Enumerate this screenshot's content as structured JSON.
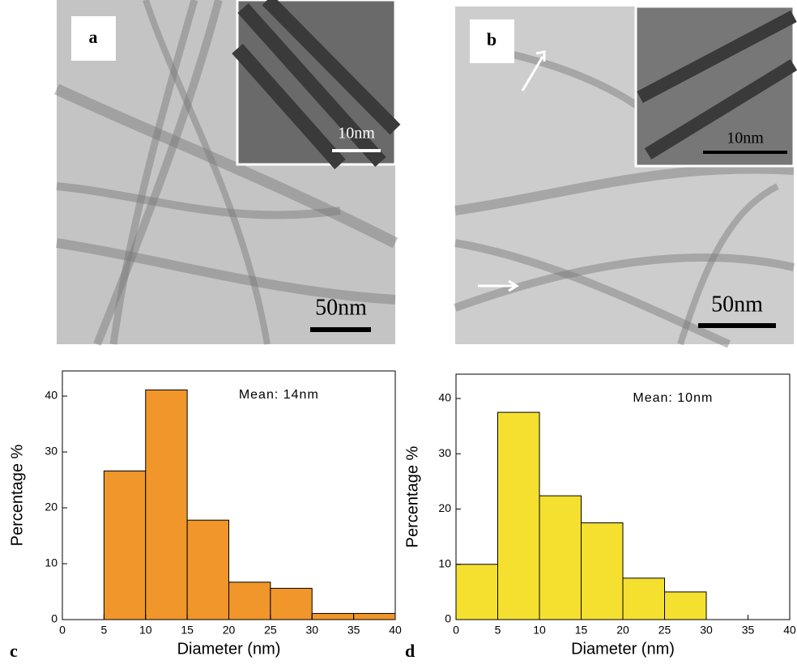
{
  "panels": [
    {
      "label": "a",
      "scale_bar": "50nm",
      "inset_scale_bar": "10nm"
    },
    {
      "label": "b",
      "scale_bar": "50nm",
      "inset_scale_bar": "10nm"
    }
  ],
  "chart_data": [
    {
      "type": "histogram",
      "label": "c",
      "annotation": "Mean: 14nm",
      "xlabel": "Diameter (nm)",
      "ylabel": "Percentage %",
      "color": "#f0962a",
      "bins": [
        5,
        10,
        15,
        20,
        25,
        30,
        35,
        40
      ],
      "values": [
        26.6,
        41.1,
        17.8,
        6.7,
        5.6,
        1.1,
        1.1
      ],
      "xlim": [
        0,
        40
      ],
      "xticks": [
        0,
        5,
        10,
        15,
        20,
        25,
        30,
        35,
        40
      ],
      "ylim": [
        0,
        44.5
      ],
      "yticks": [
        0,
        10,
        20,
        30,
        40
      ]
    },
    {
      "type": "histogram",
      "label": "d",
      "annotation": "Mean: 10nm",
      "xlabel": "Diameter (nm)",
      "ylabel": "Percentage %",
      "color": "#f5e030",
      "bins": [
        0,
        5,
        10,
        15,
        20,
        25,
        30
      ],
      "values": [
        10,
        37.5,
        22.4,
        17.5,
        7.5,
        5.0
      ],
      "xlim": [
        0,
        40
      ],
      "xticks": [
        0,
        5,
        10,
        15,
        20,
        25,
        30,
        35,
        40
      ],
      "ylim": [
        0,
        44.4
      ],
      "yticks": [
        0,
        10,
        20,
        30,
        40
      ]
    }
  ]
}
